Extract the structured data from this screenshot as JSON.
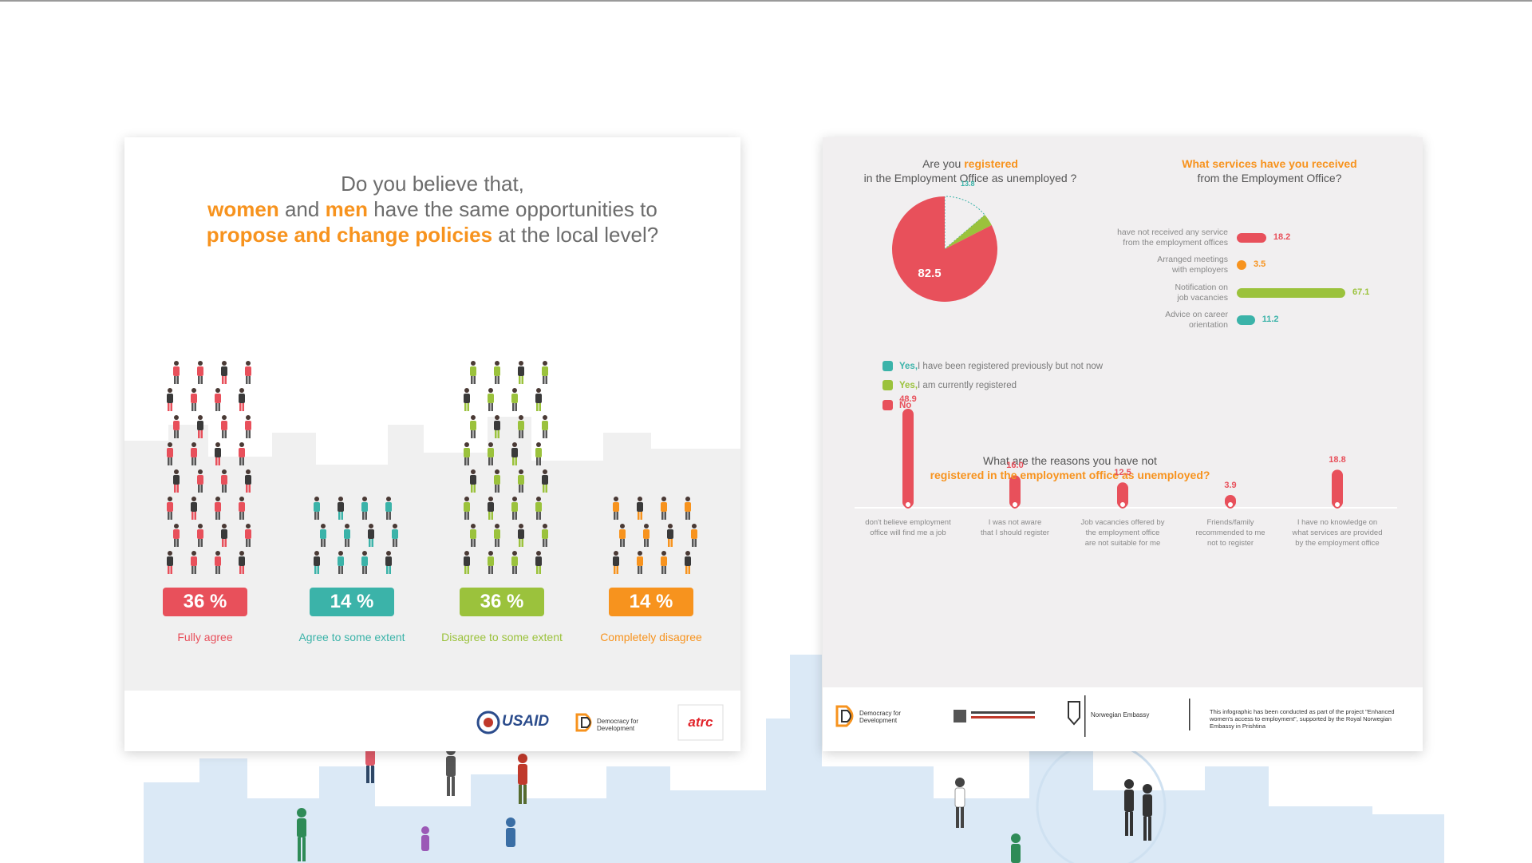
{
  "panel1": {
    "question_line1": "Do you believe that,",
    "question_line2_a": "women",
    "question_line2_b": " and ",
    "question_line2_c": "men",
    "question_line2_d": " have the same opportunities to",
    "question_line3_a": "propose and change policies",
    "question_line3_b": " at the local level?",
    "footer_logos": [
      "USAID",
      "Democracy for Development",
      "atrc"
    ]
  },
  "panel2": {
    "pie_title_a": "Are you ",
    "pie_title_b": "registered",
    "pie_title_c": "in the Employment Office as unemployed ?",
    "services_title_a": "What services have you received",
    "services_title_b": "from the Employment Office?",
    "reasons_title_a": "What are the reasons you have not",
    "reasons_title_b": "registered in the employment office as unemployed?",
    "legend": [
      {
        "bold": "Yes,",
        "text": " I have been registered previously but not now",
        "color": "#3bb3a9"
      },
      {
        "bold": "Yes,",
        "text": " I am currently registered",
        "color": "#9bc23c"
      },
      {
        "bold": "No",
        "text": "",
        "color": "#e8505b"
      }
    ],
    "footer_logos": [
      "Democracy for Development",
      "Norwegian Embassy"
    ],
    "footer_note": "This infographic has been conducted as part of the project \"Enhanced women's access to employment\", supported by the Royal Norwegian Embassy in Prishtina"
  },
  "chart_data": [
    {
      "type": "bar",
      "categories": [
        "Fully agree",
        "Agree to some extent",
        "Disagree to some extent",
        "Completely disagree"
      ],
      "values": [
        36,
        14,
        36,
        14
      ],
      "value_labels": [
        "36 %",
        "14 %",
        "36 %",
        "14 %"
      ],
      "colors": [
        "#e8505b",
        "#3bb3a9",
        "#9bc23c",
        "#f7931e"
      ]
    },
    {
      "type": "pie",
      "labels": [
        "Yes, I have been registered previously but not now",
        "Yes, I am currently registered",
        "No"
      ],
      "values": [
        13.8,
        3.7,
        82.5
      ],
      "value_labels": [
        "13.8",
        "3.7",
        "82.5"
      ],
      "colors": [
        "#3bb3a9",
        "#9bc23c",
        "#e8505b"
      ]
    },
    {
      "type": "bar",
      "orientation": "horizontal",
      "categories": [
        "have not received any service from the employment offices",
        "Arranged meetings with employers",
        "Notification on job vacancies",
        "Advice on career orientation"
      ],
      "category_lines": [
        [
          "have not received any service",
          "from the employment offices"
        ],
        [
          "Arranged meetings",
          "with employers"
        ],
        [
          "Notification on",
          "job vacancies"
        ],
        [
          "Advice on career",
          "orientation"
        ]
      ],
      "values": [
        18.2,
        3.5,
        67.1,
        11.2
      ],
      "value_labels": [
        "18.2",
        "3.5",
        "67.1",
        "11.2"
      ],
      "colors": [
        "#e8505b",
        "#f7931e",
        "#9bc23c",
        "#3bb3a9"
      ]
    },
    {
      "type": "bar",
      "categories": [
        "don't believe employment office will find me a job",
        "I was not aware that I should register",
        "Job vacancies offered by the employment office are not suitable for me",
        "Friends/family recommended to me not to register",
        "I have no knowledge on what services are provided by the employment office"
      ],
      "category_lines": [
        [
          "don't believe employment",
          "office will find me a job"
        ],
        [
          "I was not aware",
          "that I should register"
        ],
        [
          "Job vacancies offered by",
          "the employment office",
          "are not suitable for me"
        ],
        [
          "Friends/family",
          "recommended to me",
          "not to register"
        ],
        [
          "I have no knowledge on",
          "what services are provided",
          "by the employment office"
        ]
      ],
      "values": [
        48.9,
        16.0,
        12.5,
        3.9,
        18.8
      ],
      "value_labels": [
        "48.9",
        "16.0",
        "12.5",
        "3.9",
        "18.8"
      ],
      "colors": [
        "#e8505b"
      ]
    }
  ]
}
